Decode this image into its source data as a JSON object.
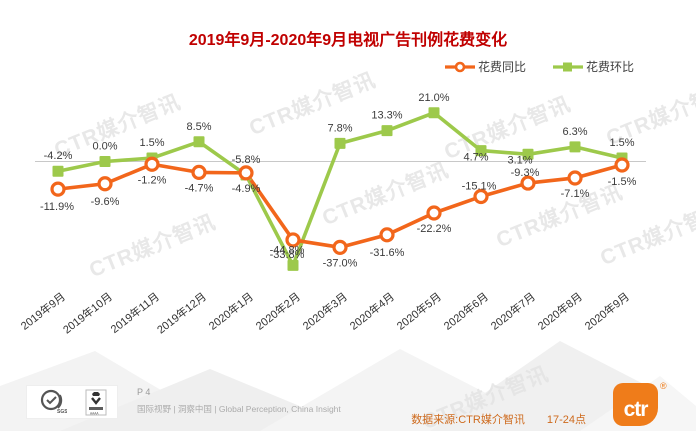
{
  "title": "2019年9月-2020年9月电视广告刊例花费变化",
  "watermark": {
    "text": "CTR媒介智讯"
  },
  "chart_data": {
    "type": "line",
    "categories": [
      "2019年9月",
      "2019年10月",
      "2019年11月",
      "2019年12月",
      "2020年1月",
      "2020年2月",
      "2020年3月",
      "2020年4月",
      "2020年5月",
      "2020年6月",
      "2020年7月",
      "2020年8月",
      "2020年9月"
    ],
    "series": [
      {
        "name": "花费同比",
        "color": "#F2661B",
        "marker": "circle",
        "values": [
          -11.9,
          -9.6,
          -1.2,
          -4.7,
          -4.9,
          -33.8,
          -37.0,
          -31.6,
          -22.2,
          -15.1,
          -9.3,
          -7.1,
          -1.5
        ],
        "labels": [
          "-11.9%",
          "-9.6%",
          "-1.2%",
          "-4.7%",
          "-4.9%",
          "-33.8%",
          "-37.0%",
          "-31.6%",
          "-22.2%",
          "-15.1%",
          "-9.3%",
          "-7.1%",
          "-1.5%"
        ]
      },
      {
        "name": "花费环比",
        "color": "#9DC94B",
        "marker": "square",
        "values": [
          -4.2,
          0.0,
          1.5,
          8.5,
          -5.8,
          -44.8,
          7.8,
          13.3,
          21.0,
          4.7,
          3.1,
          6.3,
          1.5
        ],
        "labels": [
          "-4.2%",
          "0.0%",
          "1.5%",
          "8.5%",
          "-5.8%",
          "-44.8%",
          "7.8%",
          "13.3%",
          "21.0%",
          "4.7%",
          "3.1%",
          "6.3%",
          "1.5%"
        ]
      }
    ],
    "label_format": "percent_one_decimal",
    "ylim": [
      -50,
      25
    ],
    "grid": "zero-line-only",
    "zero_line_color": "#C8C8C8",
    "data_label_color": "#3C3C3C",
    "x_label_color": "#333333",
    "legend_position": "top-right"
  },
  "footer": {
    "page": "P 4",
    "tagline": "国际视野 | 洞察中国 | Global Perception, China Insight",
    "source": "数据来源:CTR媒介智讯",
    "daypart": "17-24点",
    "source_color": "#CE6A1D",
    "logo_text": "ctr",
    "registered": "®",
    "logo_color": "#EF7C1A",
    "badges": [
      "sgs-certification-badge",
      "crown-certification-badge"
    ]
  }
}
